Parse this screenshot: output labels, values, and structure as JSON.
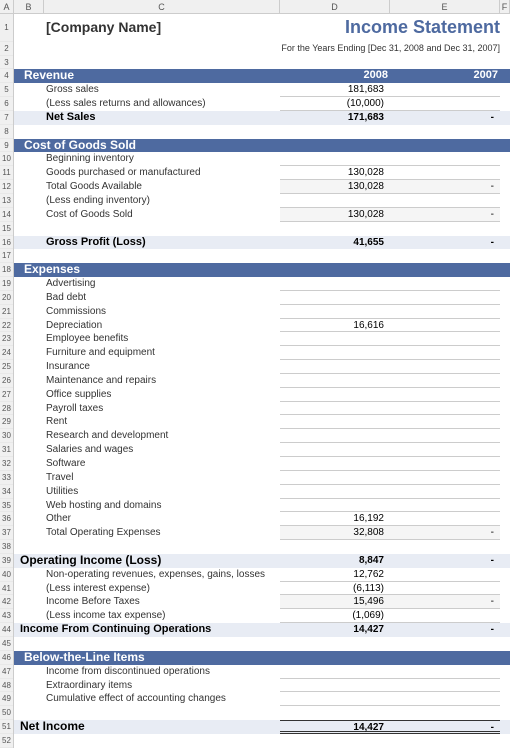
{
  "meta": {
    "company_name": "[Company Name]",
    "title": "Income Statement",
    "subtitle": "For the Years Ending [Dec 31, 2008 and Dec 31, 2007]",
    "year1": "2008",
    "year2": "2007"
  },
  "columns": [
    "A",
    "B",
    "C",
    "D",
    "E",
    "F"
  ],
  "row_count": 52,
  "sections": [
    {
      "title": "Revenue",
      "show_years": true,
      "rows": [
        {
          "label": "Gross sales",
          "y1": "181,683",
          "y2": ""
        },
        {
          "label": "(Less sales returns and allowances)",
          "y1": "(10,000)",
          "y2": ""
        }
      ],
      "subtotal": {
        "label": "Net Sales",
        "y1": "171,683",
        "y2": "-"
      }
    },
    {
      "title": "Cost of Goods Sold",
      "show_years": false,
      "rows": [
        {
          "label": "Beginning inventory",
          "y1": "",
          "y2": ""
        },
        {
          "label": "Goods purchased or manufactured",
          "y1": "130,028",
          "y2": ""
        },
        {
          "label": "Total Goods Available",
          "y1": "130,028",
          "y2": "-",
          "light_total": true
        },
        {
          "label": "(Less ending inventory)",
          "y1": "",
          "y2": ""
        },
        {
          "label": "Cost of Goods Sold",
          "y1": "130,028",
          "y2": "-",
          "light_total": true
        }
      ],
      "gap_before_subtotal": true,
      "subtotal": {
        "label": "Gross Profit (Loss)",
        "y1": "41,655",
        "y2": "-"
      }
    },
    {
      "title": "Expenses",
      "show_years": false,
      "rows": [
        {
          "label": "Advertising",
          "y1": "",
          "y2": ""
        },
        {
          "label": "Bad debt",
          "y1": "",
          "y2": ""
        },
        {
          "label": "Commissions",
          "y1": "",
          "y2": ""
        },
        {
          "label": "Depreciation",
          "y1": "16,616",
          "y2": ""
        },
        {
          "label": "Employee benefits",
          "y1": "",
          "y2": ""
        },
        {
          "label": "Furniture and equipment",
          "y1": "",
          "y2": ""
        },
        {
          "label": "Insurance",
          "y1": "",
          "y2": ""
        },
        {
          "label": "Maintenance and repairs",
          "y1": "",
          "y2": ""
        },
        {
          "label": "Office supplies",
          "y1": "",
          "y2": ""
        },
        {
          "label": "Payroll taxes",
          "y1": "",
          "y2": ""
        },
        {
          "label": "Rent",
          "y1": "",
          "y2": ""
        },
        {
          "label": "Research and development",
          "y1": "",
          "y2": ""
        },
        {
          "label": "Salaries and wages",
          "y1": "",
          "y2": ""
        },
        {
          "label": "Software",
          "y1": "",
          "y2": ""
        },
        {
          "label": "Travel",
          "y1": "",
          "y2": ""
        },
        {
          "label": "Utilities",
          "y1": "",
          "y2": ""
        },
        {
          "label": "Web hosting and domains",
          "y1": "",
          "y2": ""
        },
        {
          "label": "Other",
          "y1": "16,192",
          "y2": ""
        },
        {
          "label": "Total Operating Expenses",
          "y1": "32,808",
          "y2": "-",
          "light_total": true
        }
      ]
    }
  ],
  "operating": {
    "title": "Operating Income (Loss)",
    "y1": "8,847",
    "y2": "-",
    "rows": [
      {
        "label": "Non-operating revenues, expenses, gains, losses",
        "y1": "12,762",
        "y2": ""
      },
      {
        "label": "(Less interest expense)",
        "y1": "(6,113)",
        "y2": ""
      },
      {
        "label": "Income Before Taxes",
        "y1": "15,496",
        "y2": "-",
        "light_total": true
      },
      {
        "label": "(Less income tax expense)",
        "y1": "(1,069)",
        "y2": ""
      }
    ],
    "subtotal": {
      "label": "Income From Continuing Operations",
      "y1": "14,427",
      "y2": "-"
    }
  },
  "below_line": {
    "title": "Below-the-Line Items",
    "rows": [
      {
        "label": "Income from discontinued operations",
        "y1": "",
        "y2": ""
      },
      {
        "label": "Extraordinary items",
        "y1": "",
        "y2": ""
      },
      {
        "label": "Cumulative effect of accounting changes",
        "y1": "",
        "y2": ""
      }
    ]
  },
  "net_income": {
    "label": "Net Income",
    "y1": "14,427",
    "y2": "-"
  },
  "colors": {
    "header_bg": "#4e6aa0",
    "shaded_bg": "#e8ecf4",
    "title_color": "#4e6aa0"
  }
}
